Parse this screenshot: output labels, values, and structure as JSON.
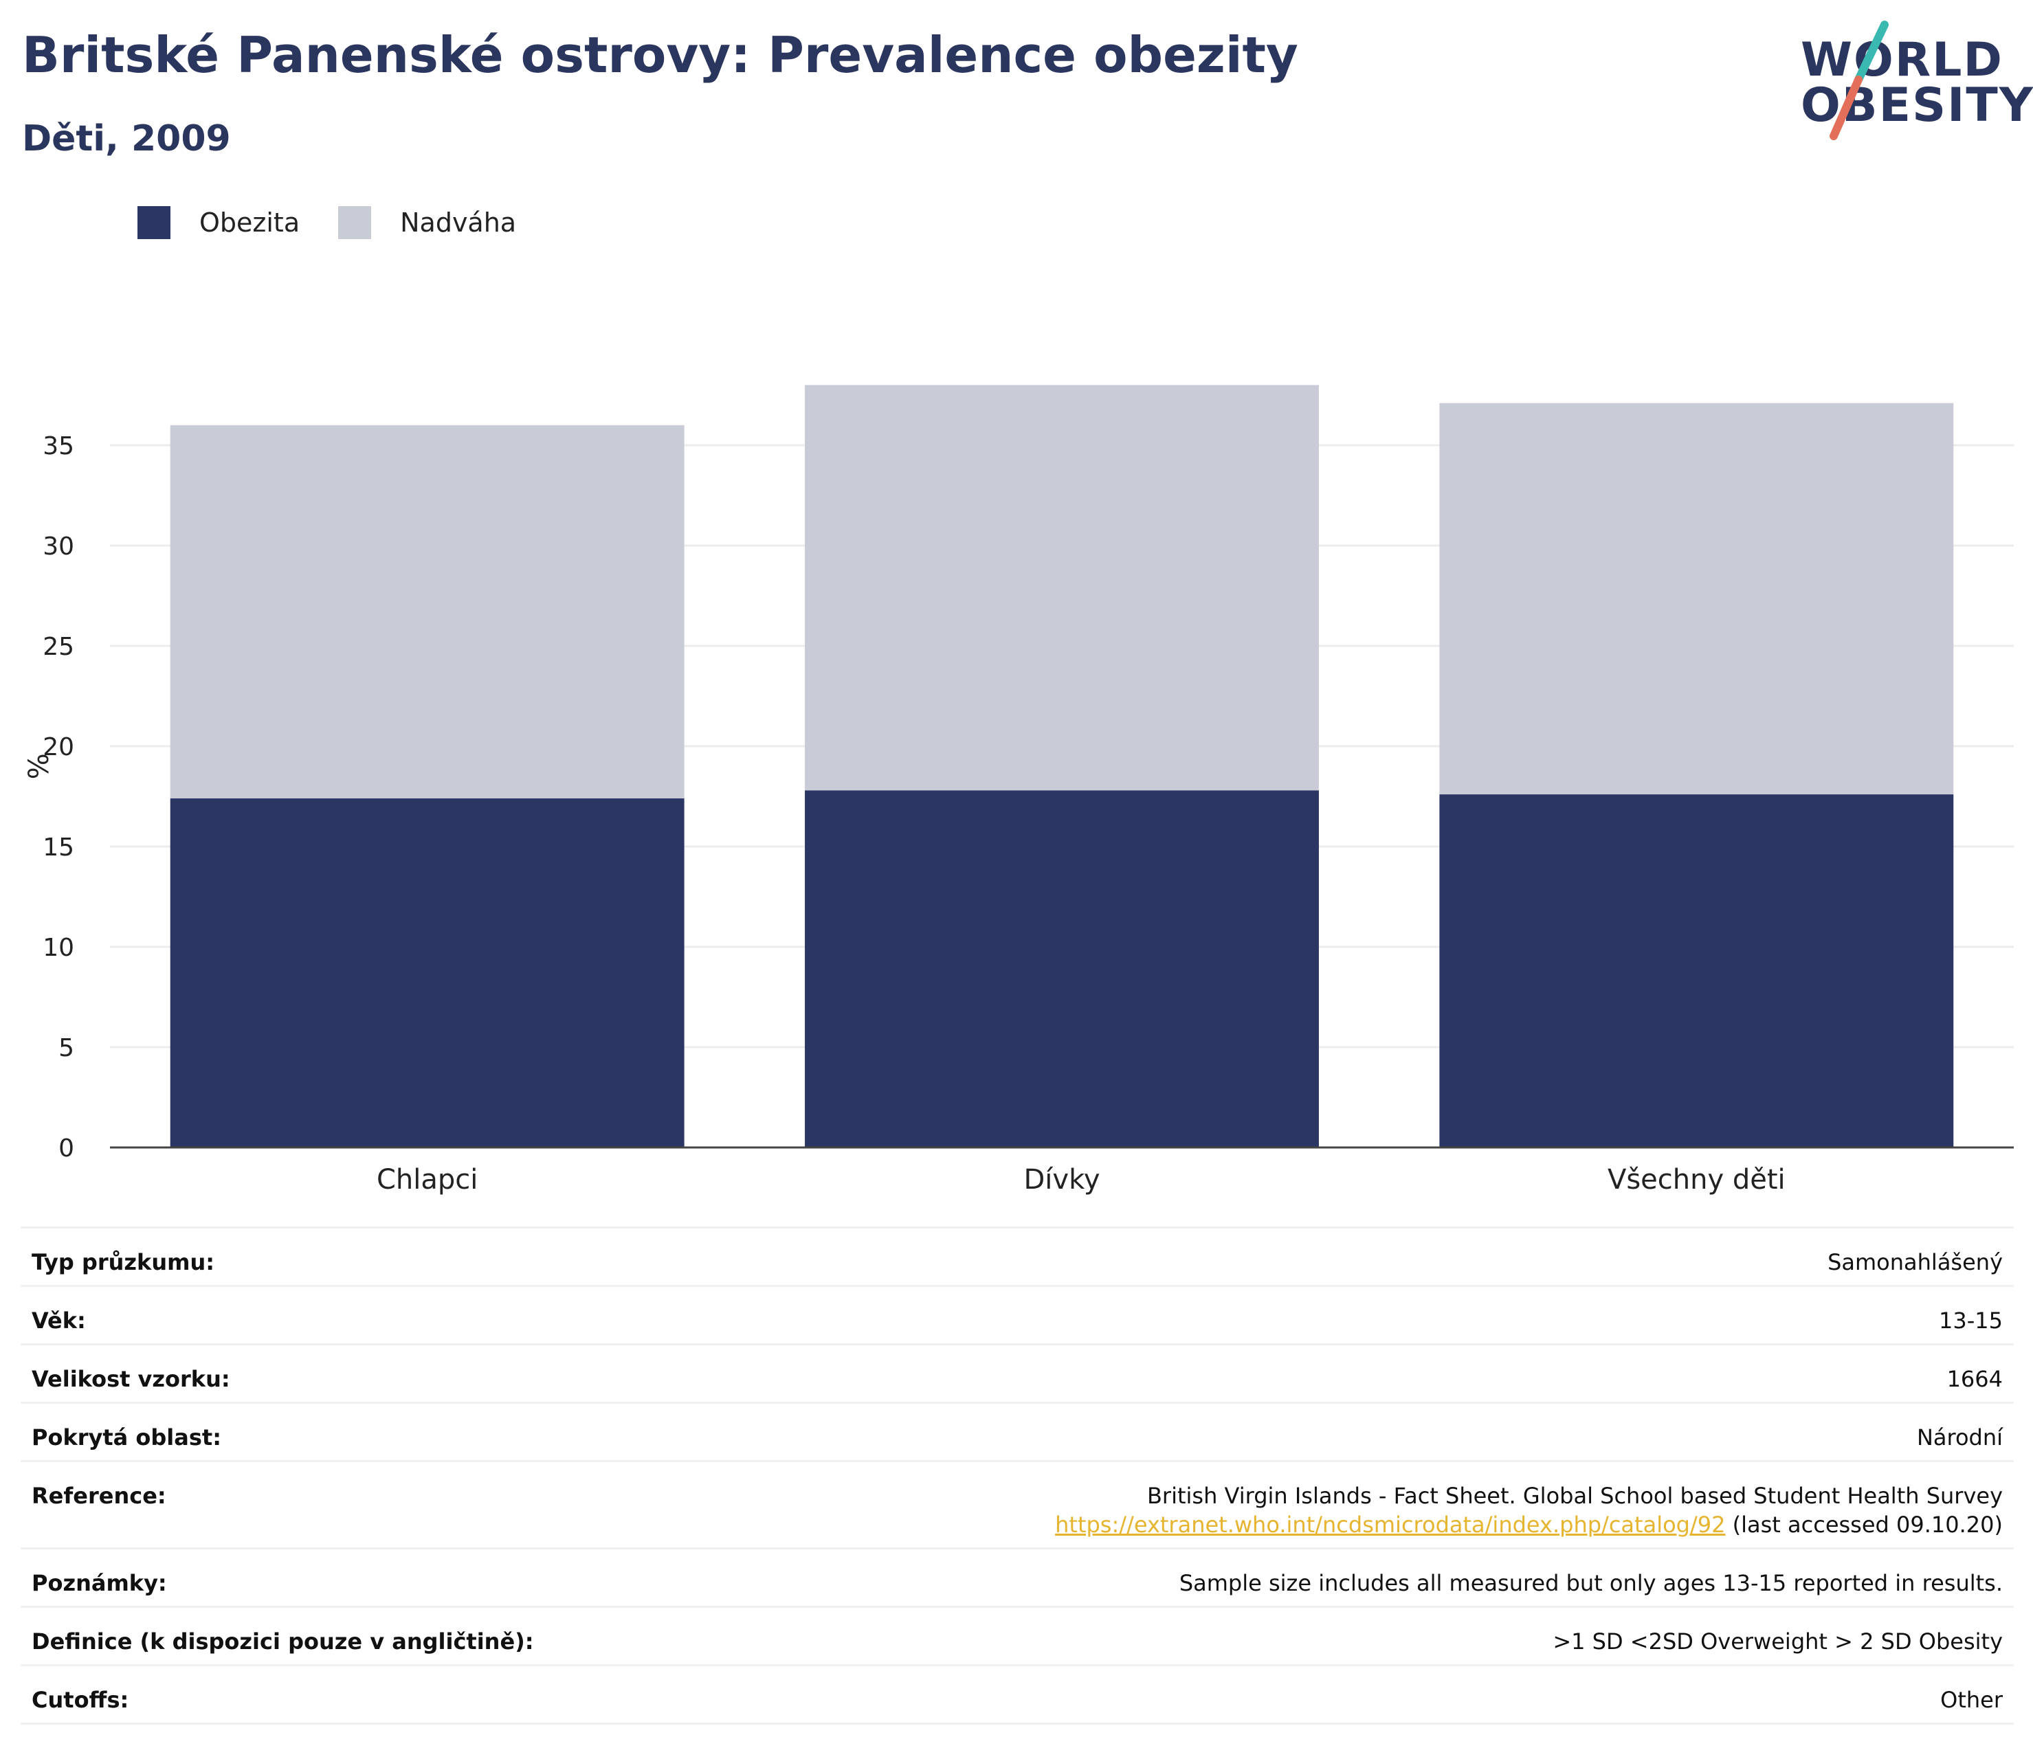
{
  "header": {
    "title": "Britské Panenské ostrovy: Prevalence obezity",
    "subtitle": "Děti, 2009"
  },
  "logo": {
    "line1": "WORLD",
    "line2": "OBESITY",
    "colors": {
      "text": "#2b365f",
      "slash_teal": "#3ab9b0",
      "slash_coral": "#e36f5a"
    }
  },
  "legend": {
    "items": [
      {
        "label": "Obezita",
        "color": "#2b3664"
      },
      {
        "label": "Nadváha",
        "color": "#c9cbd6"
      }
    ]
  },
  "chart_data": {
    "type": "bar",
    "stacked": true,
    "categories": [
      "Chlapci",
      "Dívky",
      "Všechny děti"
    ],
    "series": [
      {
        "name": "Obezita",
        "values": [
          17.4,
          17.8,
          17.6
        ],
        "color": "#2b3664"
      },
      {
        "name": "Nadváha",
        "values": [
          18.6,
          20.2,
          19.5
        ],
        "color": "#c9cbd6"
      }
    ],
    "ylabel": "%",
    "ylim": [
      0,
      38
    ],
    "yticks": [
      0,
      5,
      10,
      15,
      20,
      25,
      30,
      35
    ],
    "grid": true,
    "legend_position": "top-left"
  },
  "info": {
    "rows": [
      {
        "label": "Typ průzkumu:",
        "value": "Samonahlášený"
      },
      {
        "label": "Věk:",
        "value": "13-15"
      },
      {
        "label": "Velikost vzorku:",
        "value": "1664"
      },
      {
        "label": "Pokrytá oblast:",
        "value": "Národní"
      },
      {
        "label": "Poznámky:",
        "value": "Sample size includes all measured but only ages 13-15 reported in results."
      },
      {
        "label": "Definice (k dispozici pouze v angličtině):",
        "value": ">1 SD <2SD Overweight > 2 SD Obesity"
      },
      {
        "label": "Cutoffs:",
        "value": "Other"
      }
    ],
    "reference": {
      "label": "Reference:",
      "line1": "British Virgin Islands - Fact Sheet. Global School based Student Health Survey",
      "link": "https://extranet.who.int/ncdsmicrodata/index.php/catalog/92",
      "suffix": " (last accessed 09.10.20)"
    }
  }
}
